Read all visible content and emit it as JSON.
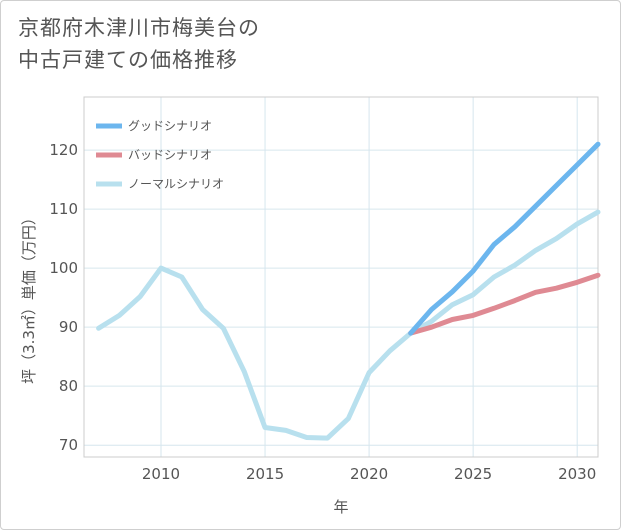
{
  "title_line1": "京都府木津川市梅美台の",
  "title_line2": "中古戸建ての価格推移",
  "chart_data": {
    "type": "line",
    "title": "京都府木津川市梅美台の中古戸建ての価格推移",
    "xlabel": "年",
    "ylabel": "坪（3.3㎡）単価（万円）",
    "xlim": [
      2006.3,
      2031
    ],
    "ylim": [
      68,
      129
    ],
    "xticks": [
      2010,
      2015,
      2020,
      2025,
      2030
    ],
    "yticks": [
      70,
      80,
      90,
      100,
      110,
      120
    ],
    "grid": true,
    "legend_position": "top-left",
    "series": [
      {
        "name": "グッドシナリオ",
        "color": "#6cb6ee",
        "x": [
          2022,
          2023,
          2024,
          2025,
          2026,
          2027,
          2028,
          2029,
          2030,
          2031
        ],
        "values": [
          89.0,
          93.0,
          96.0,
          99.5,
          104.0,
          107.0,
          110.5,
          114.0,
          117.5,
          121.0
        ]
      },
      {
        "name": "バッドシナリオ",
        "color": "#df8a93",
        "x": [
          2022,
          2023,
          2024,
          2025,
          2026,
          2027,
          2028,
          2029,
          2030,
          2031
        ],
        "values": [
          89.0,
          90.0,
          91.3,
          92.0,
          93.2,
          94.5,
          95.9,
          96.6,
          97.6,
          98.8
        ]
      },
      {
        "name": "ノーマルシナリオ",
        "color": "#b8e0ee",
        "x": [
          2007,
          2008,
          2009,
          2010,
          2011,
          2012,
          2013,
          2014,
          2015,
          2016,
          2017,
          2018,
          2019,
          2020,
          2021,
          2022,
          2023,
          2024,
          2025,
          2026,
          2027,
          2028,
          2029,
          2030,
          2031
        ],
        "values": [
          89.8,
          92.0,
          95.2,
          100.0,
          98.5,
          93.0,
          89.8,
          82.5,
          73.0,
          72.5,
          71.3,
          71.2,
          74.5,
          82.3,
          86.0,
          89.0,
          91.0,
          93.8,
          95.5,
          98.5,
          100.5,
          103.0,
          105.0,
          107.5,
          109.5
        ]
      }
    ]
  }
}
